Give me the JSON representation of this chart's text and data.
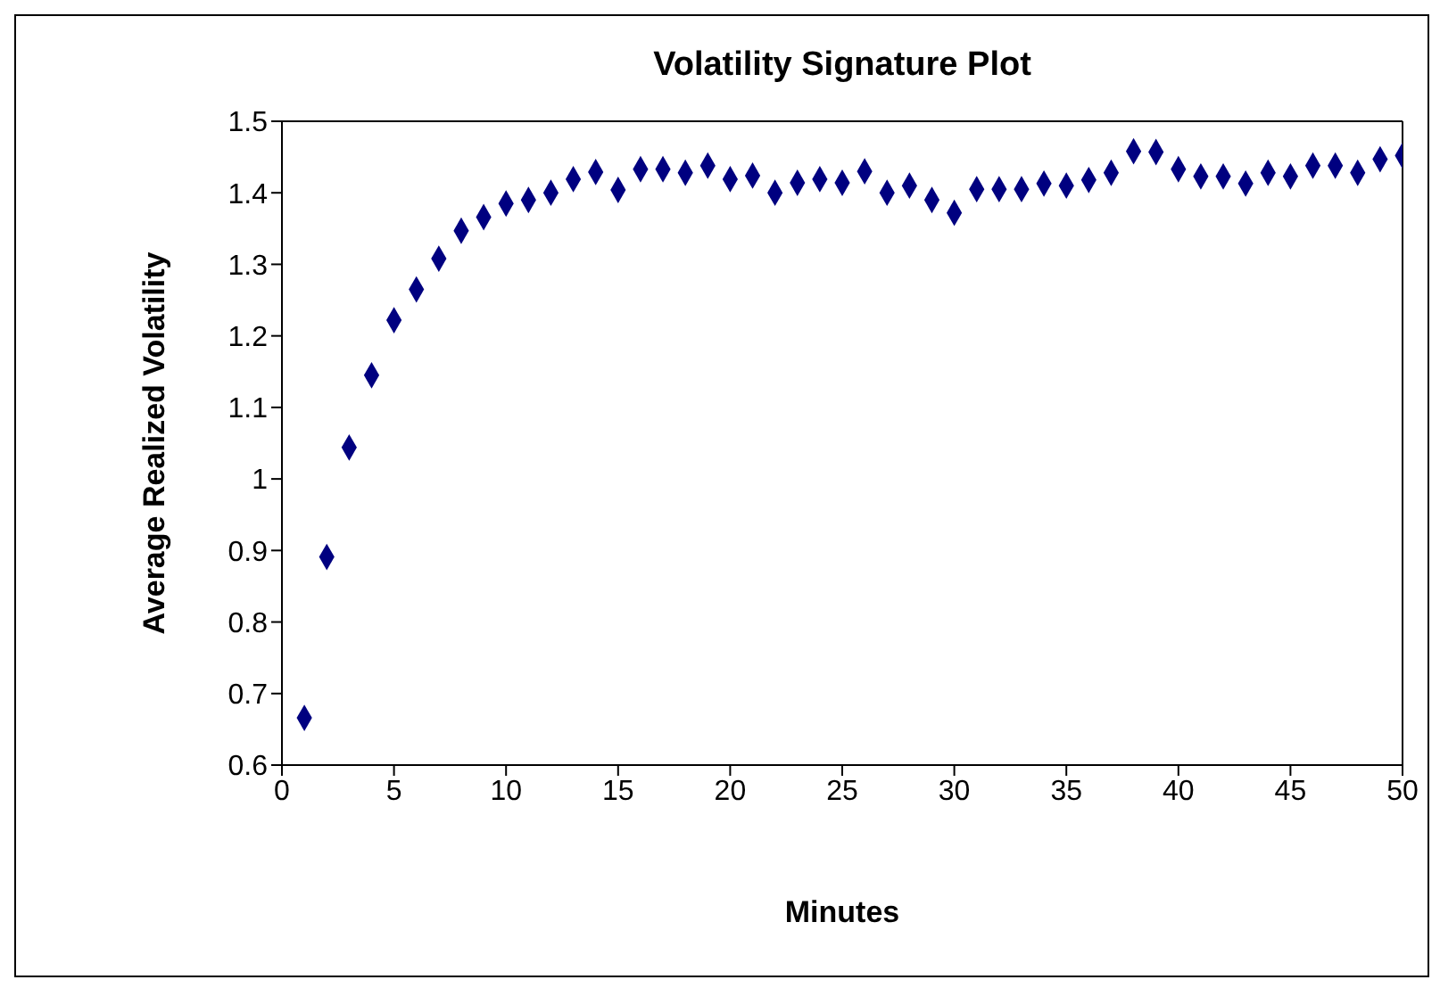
{
  "chart_data": {
    "type": "scatter",
    "title": "Volatility Signature Plot",
    "xlabel": "Minutes",
    "ylabel": "Average Realized Volatility",
    "x": [
      1,
      2,
      3,
      4,
      5,
      6,
      7,
      8,
      9,
      10,
      11,
      12,
      13,
      14,
      15,
      16,
      17,
      18,
      19,
      20,
      21,
      22,
      23,
      24,
      25,
      26,
      27,
      28,
      29,
      30,
      31,
      32,
      33,
      34,
      35,
      36,
      37,
      38,
      39,
      40,
      41,
      42,
      43,
      44,
      45,
      46,
      47,
      48,
      49,
      50
    ],
    "series": [
      {
        "color": "#000080",
        "values": [
          0.666,
          0.891,
          1.044,
          1.145,
          1.222,
          1.265,
          1.308,
          1.347,
          1.366,
          1.385,
          1.39,
          1.4,
          1.419,
          1.429,
          1.404,
          1.433,
          1.433,
          1.428,
          1.438,
          1.419,
          1.424,
          1.4,
          1.414,
          1.419,
          1.414,
          1.43,
          1.4,
          1.41,
          1.39,
          1.372,
          1.405,
          1.405,
          1.405,
          1.413,
          1.41,
          1.418,
          1.428,
          1.458,
          1.457,
          1.433,
          1.423,
          1.423,
          1.413,
          1.428,
          1.423,
          1.438,
          1.438,
          1.428,
          1.447,
          1.452
        ]
      }
    ],
    "xlim": [
      0,
      50
    ],
    "xticks": [
      0,
      5,
      10,
      15,
      20,
      25,
      30,
      35,
      40,
      45,
      50
    ],
    "ylim": [
      0.6,
      1.5
    ],
    "yticks": [
      0.6,
      0.7,
      0.8,
      0.9,
      1,
      1.1,
      1.2,
      1.3,
      1.4,
      1.5
    ],
    "marker": "diamond",
    "grid": false,
    "legend": false
  }
}
